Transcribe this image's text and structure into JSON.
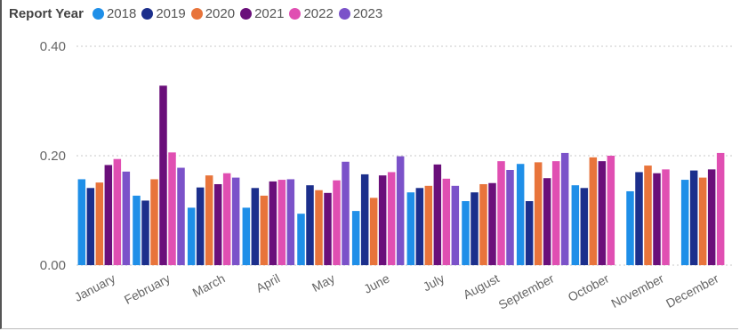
{
  "legend": {
    "title": "Report Year"
  },
  "chart_data": {
    "type": "bar",
    "categories": [
      "January",
      "February",
      "March",
      "April",
      "May",
      "June",
      "July",
      "August",
      "September",
      "October",
      "November",
      "December"
    ],
    "series": [
      {
        "name": "2018",
        "color": "#1f8fe8",
        "values": [
          0.157,
          0.127,
          0.105,
          0.105,
          0.094,
          0.099,
          0.133,
          0.117,
          0.185,
          0.146,
          0.135,
          0.156
        ]
      },
      {
        "name": "2019",
        "color": "#1c2f8c",
        "values": [
          0.141,
          0.118,
          0.142,
          0.141,
          0.146,
          0.166,
          0.141,
          0.133,
          0.117,
          0.141,
          0.17,
          0.173
        ]
      },
      {
        "name": "2020",
        "color": "#e8743b",
        "values": [
          0.151,
          0.157,
          0.164,
          0.127,
          0.137,
          0.123,
          0.145,
          0.148,
          0.188,
          0.197,
          0.182,
          0.16
        ]
      },
      {
        "name": "2021",
        "color": "#6a0f7a",
        "values": [
          0.183,
          0.328,
          0.148,
          0.153,
          0.132,
          0.164,
          0.184,
          0.15,
          0.159,
          0.19,
          0.168,
          0.175
        ]
      },
      {
        "name": "2022",
        "color": "#e04fb2",
        "values": [
          0.194,
          0.206,
          0.168,
          0.156,
          0.155,
          0.17,
          0.158,
          0.19,
          0.19,
          0.2,
          0.175,
          0.205
        ]
      },
      {
        "name": "2023",
        "color": "#7b52c9",
        "values": [
          0.171,
          0.178,
          0.16,
          0.157,
          0.189,
          0.199,
          0.145,
          0.174,
          0.205,
          null,
          null,
          null
        ]
      }
    ],
    "ylim": [
      0,
      0.4
    ],
    "yticks": [
      "0.00",
      "0.20",
      "0.40"
    ],
    "ytick_values": [
      0,
      0.2,
      0.4
    ],
    "grid": true,
    "legend_position": "top-left"
  }
}
